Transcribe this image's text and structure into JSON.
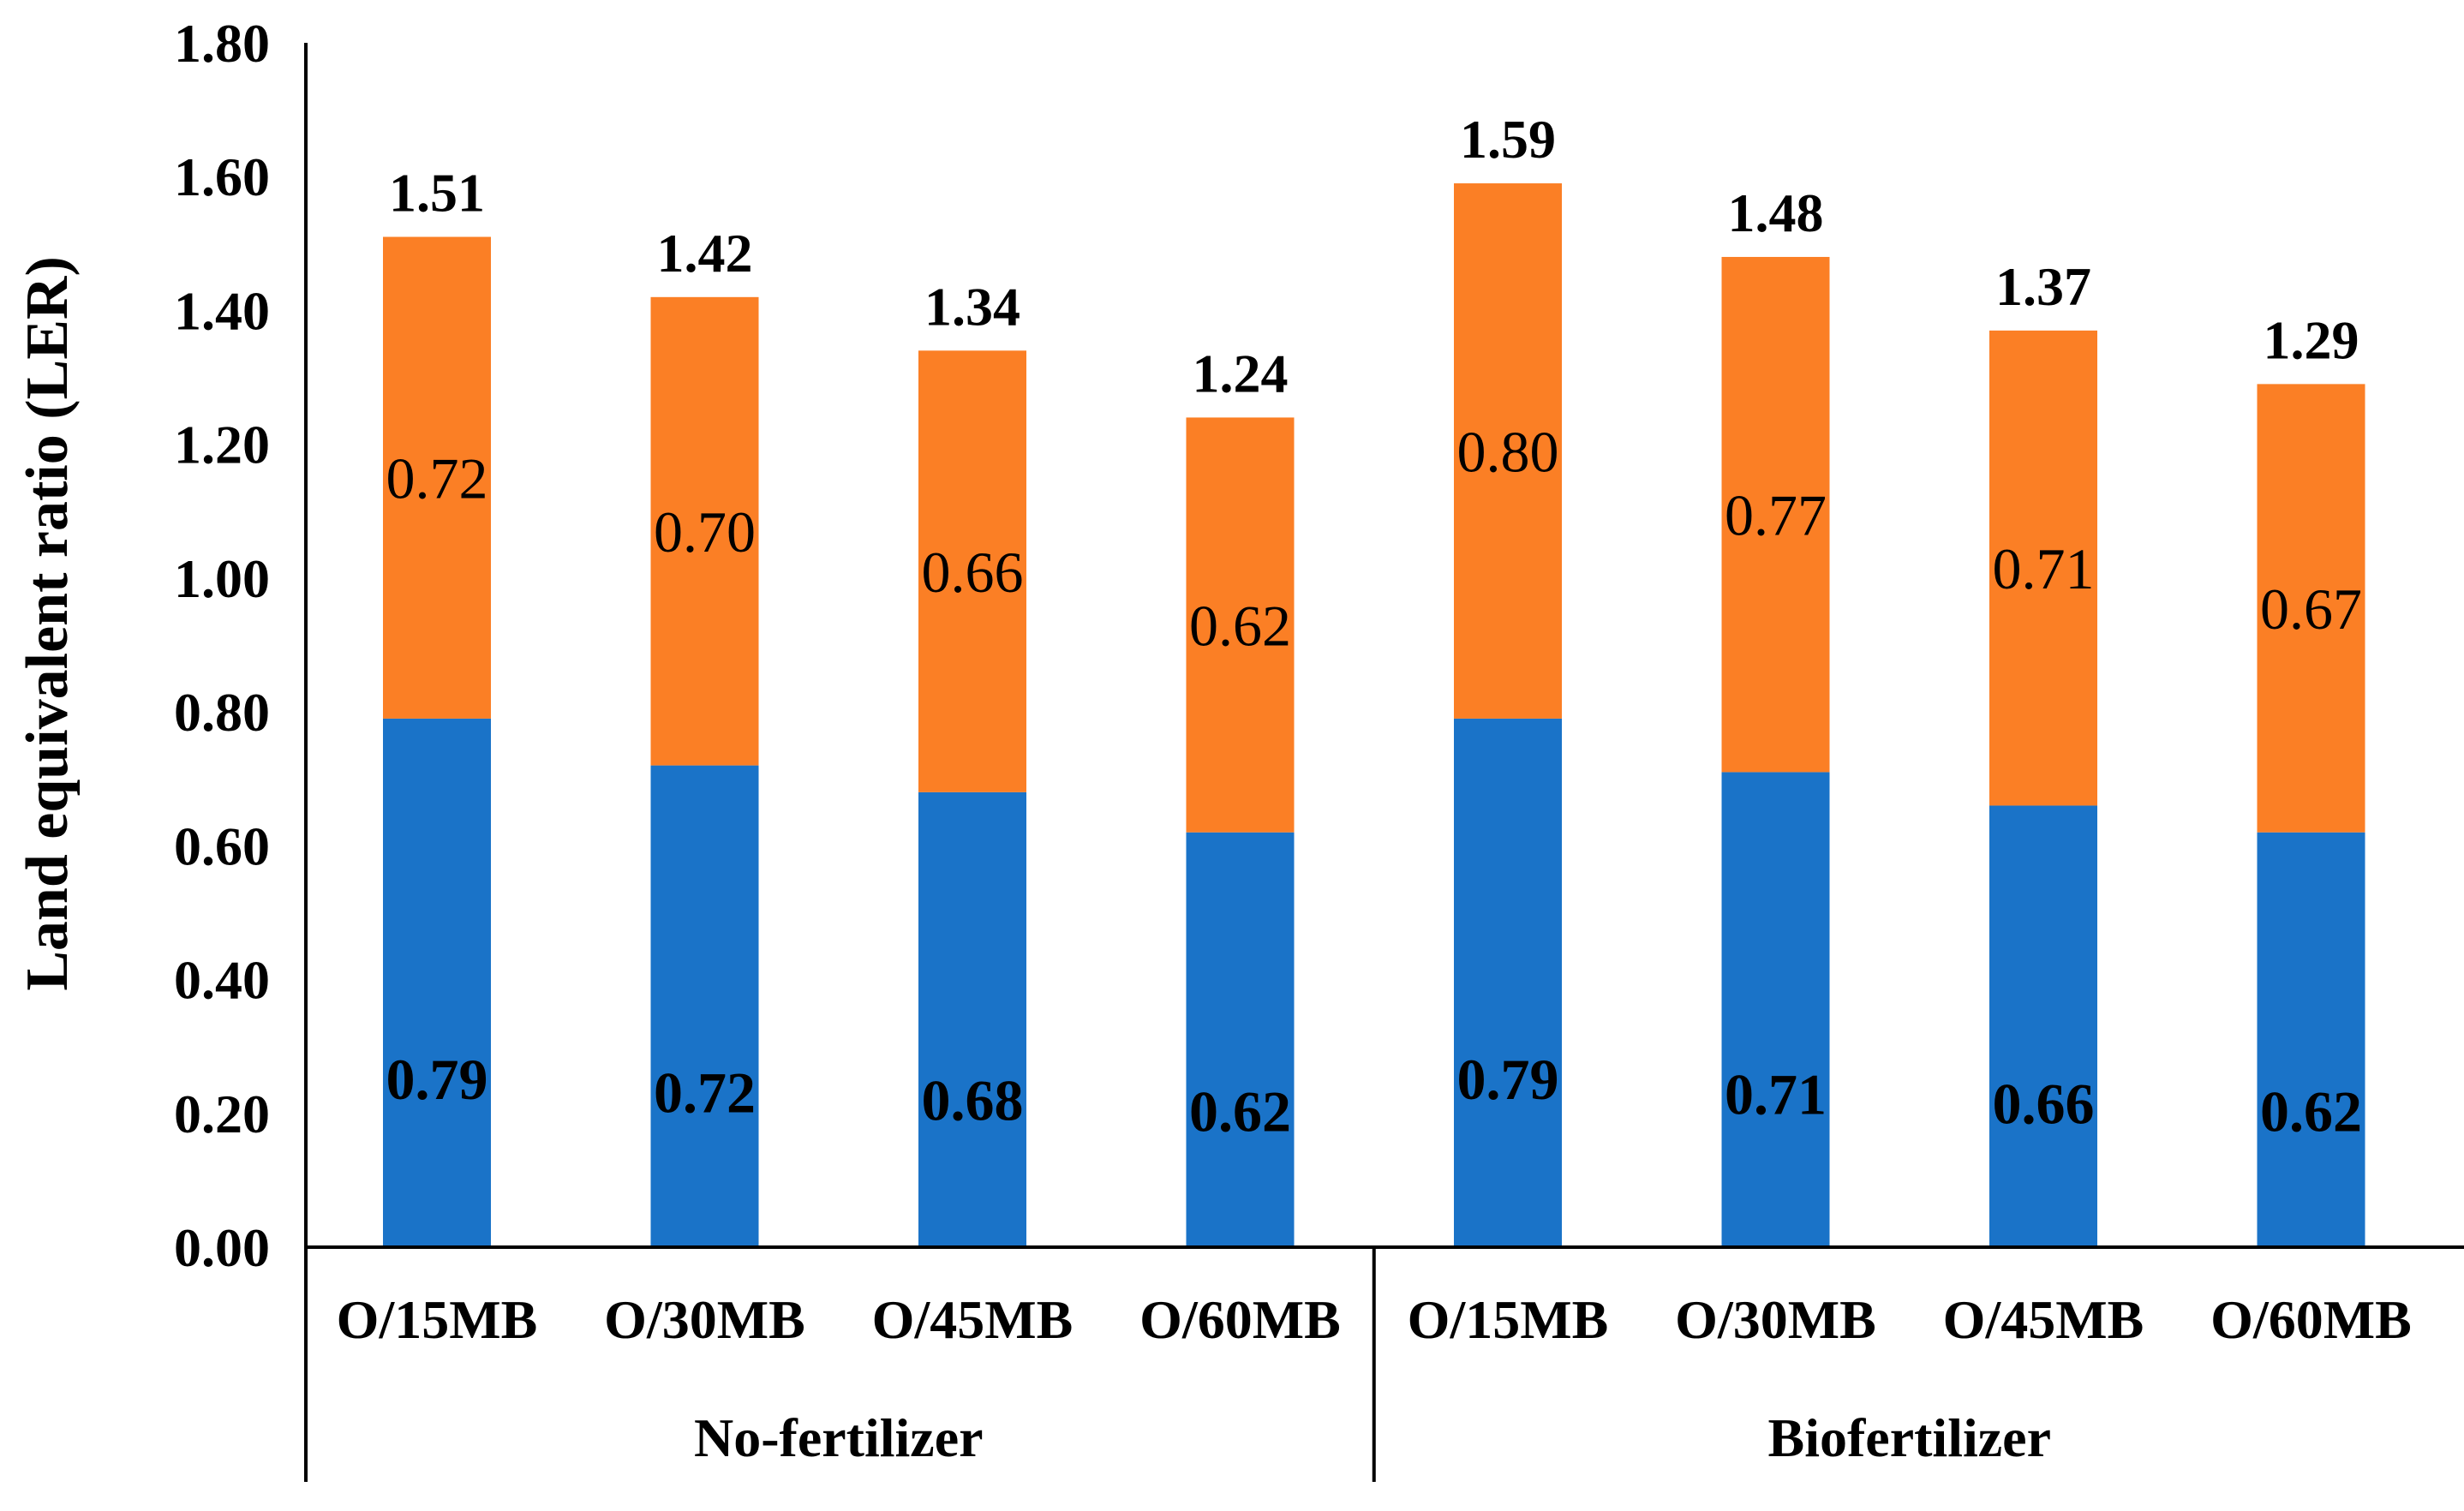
{
  "chart_data": {
    "type": "bar",
    "stacked": true,
    "title": "",
    "xlabel": "",
    "ylabel": "Land equivalent ratio (LER)",
    "ylim": [
      0,
      1.8
    ],
    "yticks": [
      "0.00",
      "0.20",
      "0.40",
      "0.60",
      "0.80",
      "1.00",
      "1.20",
      "1.40",
      "1.60",
      "1.80"
    ],
    "ytick_values": [
      0,
      0.2,
      0.4,
      0.6,
      0.8,
      1.0,
      1.2,
      1.4,
      1.6,
      1.8
    ],
    "grid": false,
    "legend": "none",
    "categories": [
      "O/15MB",
      "O/30MB",
      "O/45MB",
      "O/60MB",
      "O/15MB",
      "O/30MB",
      "O/45MB",
      "O/60MB"
    ],
    "groups": [
      {
        "name": "No-fertilizer",
        "start": 0,
        "end": 3
      },
      {
        "name": "Biofertilizer",
        "start": 4,
        "end": 7
      }
    ],
    "series": [
      {
        "name": "lower",
        "color": "#1a73c8",
        "values": [
          0.79,
          0.72,
          0.68,
          0.62,
          0.79,
          0.71,
          0.66,
          0.62
        ],
        "labels": [
          "0.79",
          "0.72",
          "0.68",
          "0.62",
          "0.79",
          "0.71",
          "0.66",
          "0.62"
        ]
      },
      {
        "name": "upper",
        "color": "#fb7f25",
        "values": [
          0.72,
          0.7,
          0.66,
          0.62,
          0.8,
          0.77,
          0.71,
          0.67
        ],
        "labels": [
          "0.72",
          "0.70",
          "0.66",
          "0.62",
          "0.80",
          "0.77",
          "0.71",
          "0.67"
        ]
      }
    ],
    "totals": [
      1.51,
      1.42,
      1.34,
      1.24,
      1.59,
      1.48,
      1.37,
      1.29
    ],
    "total_labels": [
      "1.51",
      "1.42",
      "1.34",
      "1.24",
      "1.59",
      "1.48",
      "1.37",
      "1.29"
    ]
  }
}
